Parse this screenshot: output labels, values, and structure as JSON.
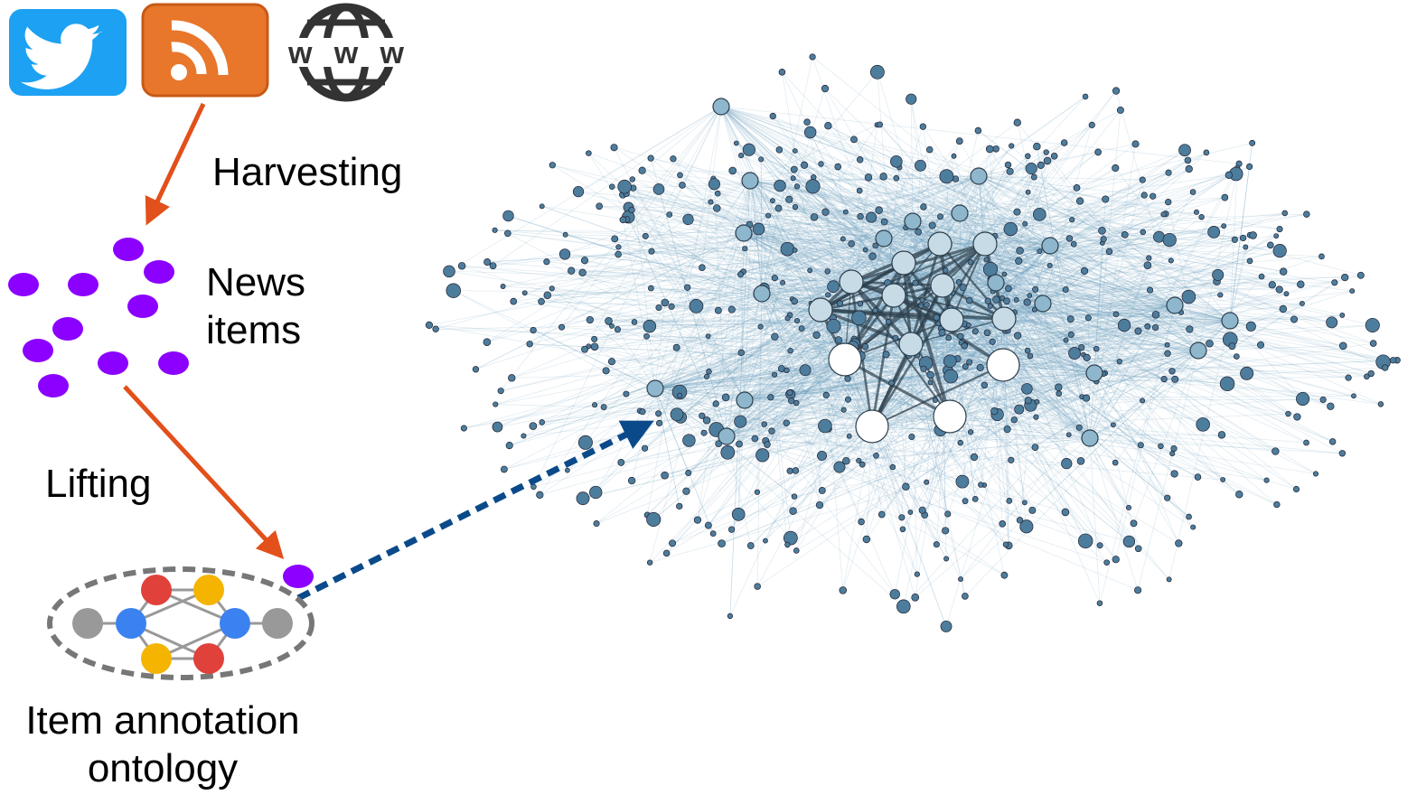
{
  "labels": {
    "harvesting": "Harvesting",
    "news_items": [
      "News",
      "items"
    ],
    "lifting": "Lifting",
    "ontology": [
      "Item annotation",
      "ontology"
    ]
  },
  "icons": {
    "www": "www"
  }
}
